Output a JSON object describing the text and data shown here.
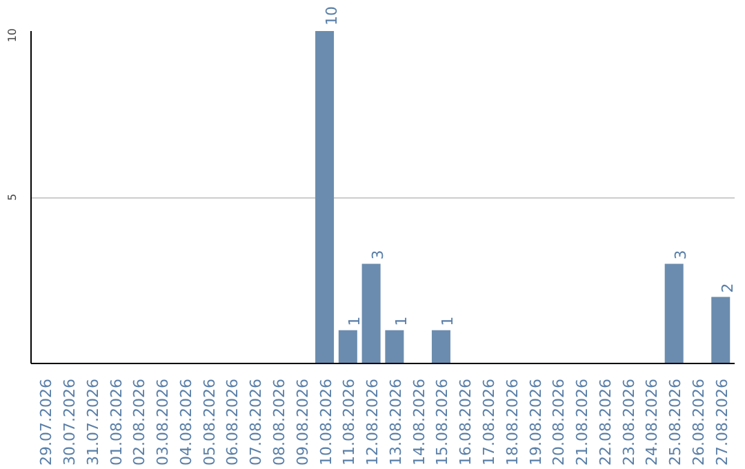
{
  "chart_data": {
    "type": "bar",
    "categories": [
      "29.07.2026",
      "30.07.2026",
      "31.07.2026",
      "01.08.2026",
      "02.08.2026",
      "03.08.2026",
      "04.08.2026",
      "05.08.2026",
      "06.08.2026",
      "07.08.2026",
      "08.08.2026",
      "09.08.2026",
      "10.08.2026",
      "11.08.2026",
      "12.08.2026",
      "13.08.2026",
      "14.08.2026",
      "15.08.2026",
      "16.08.2026",
      "17.08.2026",
      "18.08.2026",
      "19.08.2026",
      "20.08.2026",
      "21.08.2026",
      "22.08.2026",
      "23.08.2026",
      "24.08.2026",
      "25.08.2026",
      "26.08.2026",
      "27.08.2026"
    ],
    "values": [
      0,
      0,
      0,
      0,
      0,
      0,
      0,
      0,
      0,
      0,
      0,
      0,
      10,
      1,
      3,
      1,
      0,
      1,
      0,
      0,
      0,
      0,
      0,
      0,
      0,
      0,
      0,
      3,
      0,
      2
    ],
    "value_labels": [
      null,
      null,
      null,
      null,
      null,
      null,
      null,
      null,
      null,
      null,
      null,
      null,
      "10",
      "1",
      "3",
      "1",
      null,
      "1",
      null,
      null,
      null,
      null,
      null,
      null,
      null,
      null,
      null,
      "3",
      null,
      "2"
    ],
    "color": "#6b8cae",
    "ylim": [
      0,
      10
    ],
    "yticks": [
      5,
      10
    ],
    "grid": "y"
  }
}
